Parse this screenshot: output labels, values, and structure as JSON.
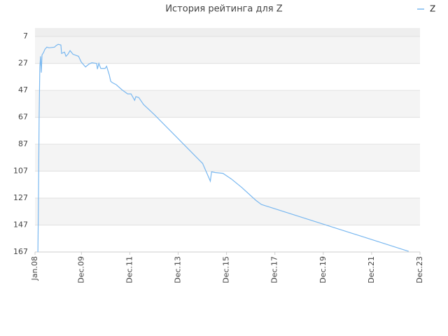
{
  "chart_data": {
    "type": "line",
    "title": "История рейтинга для Z",
    "x": [
      2008.12,
      2008.14,
      2008.17,
      2008.2,
      2008.23,
      2008.26,
      2008.29,
      2008.35,
      2008.41,
      2008.49,
      2008.58,
      2008.81,
      2008.87,
      2008.96,
      2009.07,
      2009.1,
      2009.22,
      2009.28,
      2009.36,
      2009.45,
      2009.57,
      2009.8,
      2009.91,
      2010.09,
      2010.23,
      2010.35,
      2010.55,
      2010.58,
      2010.64,
      2010.72,
      2010.9,
      2010.96,
      2011.07,
      2011.13,
      2011.19,
      2011.36,
      2011.59,
      2011.83,
      2011.97,
      2012.12,
      2012.17,
      2012.29,
      2012.49,
      2012.93,
      2013.8,
      2014.81,
      2014.93,
      2015.25,
      2015.3,
      2015.45,
      2015.77,
      2016.12,
      2016.55,
      2017.13,
      2017.36,
      2023.45
    ],
    "series": [
      {
        "name": "Z",
        "color": "#7ab8f0",
        "values": [
          167,
          134.9,
          68,
          29.6,
          21.7,
          33.8,
          20.7,
          19,
          16.5,
          14.9,
          15.4,
          14.9,
          13.8,
          12.8,
          13.3,
          19.6,
          18.6,
          21.7,
          20.2,
          17.5,
          20.2,
          21.7,
          25.9,
          29.6,
          27.5,
          26.5,
          27,
          31.2,
          27,
          30.7,
          30.7,
          29.1,
          35.4,
          40.2,
          41.2,
          42.8,
          46.5,
          49.6,
          49.6,
          54.4,
          51.7,
          52.3,
          57.5,
          64.9,
          80.7,
          99.1,
          101.2,
          114.4,
          107.5,
          108,
          108.6,
          112.8,
          119.1,
          128.6,
          131.7,
          166.5
        ]
      }
    ],
    "xlim": [
      2008.0,
      2023.92
    ],
    "xticks": [
      {
        "value": 2008.0,
        "label": "Jan.08"
      },
      {
        "value": 2009.92,
        "label": "Dec.09"
      },
      {
        "value": 2011.92,
        "label": "Dec.11"
      },
      {
        "value": 2013.92,
        "label": "Dec.13"
      },
      {
        "value": 2015.92,
        "label": "Dec.15"
      },
      {
        "value": 2017.92,
        "label": "Dec.17"
      },
      {
        "value": 2019.92,
        "label": "Dec.19"
      },
      {
        "value": 2021.92,
        "label": "Dec.21"
      },
      {
        "value": 2023.92,
        "label": "Dec.23"
      }
    ],
    "ylim": [
      0.7,
      167
    ],
    "y_inverted": true,
    "yticks": [
      7,
      27,
      47,
      67,
      87,
      107,
      127,
      147,
      167
    ],
    "grid": true,
    "legend": "top-right"
  }
}
